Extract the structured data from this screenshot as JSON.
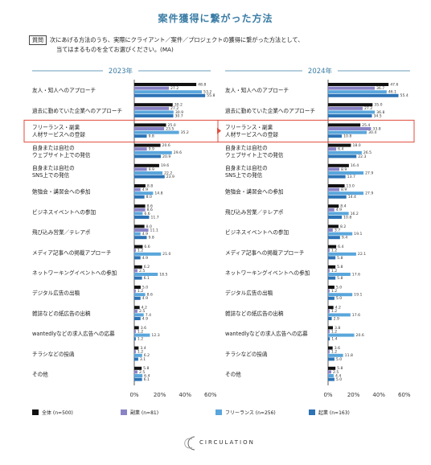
{
  "title": "案件獲得に繋がった方法",
  "question": {
    "label": "質問",
    "line1": "次にあげる方法のうち、実際にクライアント／案件／プロジェクトの獲得に繋がった方法として、",
    "line2": "当てはまるものを全てお選びください。(MA)"
  },
  "brand": "CIRCULATION",
  "colors": {
    "zentai": "#111111",
    "fukugyo": "#8a84c6",
    "freelance": "#5aa6dc",
    "kigyo": "#2d73b5",
    "highlight": "#e24b3b",
    "title": "#3a7ca5"
  },
  "chart_data": {
    "type": "bar",
    "orientation": "horizontal",
    "xlim": [
      0,
      60
    ],
    "xticks": [
      "0%",
      "20%",
      "40%",
      "60%"
    ],
    "series_names": [
      "全体 (n=500)",
      "副業 (n=81)",
      "フリーランス (n=256)",
      "起業 (n=163)"
    ],
    "panels": [
      {
        "year": "2023年",
        "categories": [
          "友人・知人へのアプローチ",
          "過去に勤めていた企業へのアプローチ",
          "フリーランス・副業|人材サービスへの登録",
          "自身または自社の|ウェブサイト上での発信",
          "自身または自社の|SNS上での発信",
          "勉強会・講習会への参加",
          "ビジネスイベントへの参加",
          "飛び込み営業／テレアポ",
          "メディア記事への掲載アプローチ",
          "ネットワーキングイベントへの参加",
          "デジタル広告の出稿",
          "雑誌などの紙広告の出稿",
          "wantedlyなどの求人広告への応募",
          "チラシなどの投函",
          "その他"
        ],
        "highlight_index": 2,
        "values": [
          [
            48.8,
            27.2,
            53.2,
            55.8
          ],
          [
            30.2,
            27.2,
            30.9,
            30.7
          ],
          [
            25.0,
            23.5,
            35.2,
            9.8
          ],
          [
            20.6,
            9.9,
            29.6,
            20.9
          ],
          [
            19.6,
            9.9,
            22.2,
            23.9
          ],
          [
            8.8,
            4.9,
            14.8,
            8.0
          ],
          [
            8.6,
            8.6,
            6.6,
            11.7
          ],
          [
            8.0,
            11.1,
            4.9,
            9.8
          ],
          [
            6.6,
            1.2,
            21.0,
            4.9
          ],
          [
            6.2,
            2.5,
            18.5,
            6.1
          ],
          [
            5.0,
            1.2,
            8.6,
            4.9
          ],
          [
            4.2,
            2.5,
            7.4,
            4.9
          ],
          [
            3.6,
            1.2,
            12.3,
            1.2
          ],
          [
            3.4,
            1.2,
            6.2,
            3.1
          ],
          [
            5.8,
            2.5,
            6.4,
            6.1
          ]
        ]
      },
      {
        "year": "2024年",
        "categories": [
          "友人・知人へのアプローチ",
          "過去に勤めていた企業へのアプローチ",
          "フリーランス・副業|人材サービスへの登録",
          "自身または自社の|ウェブサイト上での発信",
          "自身または自社の|SNS上での発信",
          "勉強会・講習会への参加",
          "飛び込み営業／テレアポ",
          "ビジネスイベントへの参加",
          "メディア記事への掲載アプローチ",
          "ネットワーキングイベントへの参加",
          "デジタル広告の出稿",
          "雑誌などの紙広告の出稿",
          "wantedlyなどの求人広告への応募",
          "チラシなどの投函",
          "その他"
        ],
        "highlight_index": 2,
        "values": [
          [
            47.6,
            36.7,
            46.1,
            55.4
          ],
          [
            35.0,
            27.2,
            36.8,
            34.5
          ],
          [
            25.4,
            33.8,
            30.4,
            10.8
          ],
          [
            18.0,
            6.4,
            26.5,
            22.3
          ],
          [
            16.4,
            8.9,
            27.9,
            13.7
          ],
          [
            13.0,
            8.9,
            27.9,
            14.4
          ],
          [
            8.4,
            4.9,
            16.2,
            10.8
          ],
          [
            8.2,
            3.7,
            19.1,
            9.4
          ],
          [
            6.4,
            1.2,
            22.1,
            5.8
          ],
          [
            5.8,
            1.2,
            17.6,
            5.8
          ],
          [
            5.0,
            1.2,
            19.1,
            5.0
          ],
          [
            4.2,
            1.2,
            17.6,
            2.9
          ],
          [
            3.8,
            1.2,
            20.6,
            1.4
          ],
          [
            3.6,
            1.2,
            11.8,
            5.0
          ],
          [
            5.8,
            2.5,
            4.4,
            5.0
          ]
        ]
      }
    ]
  }
}
